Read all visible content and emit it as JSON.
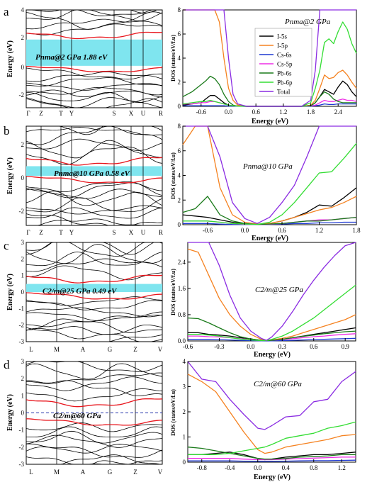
{
  "panels": [
    {
      "letter": "a",
      "band": {
        "kpoints": [
          "Γ",
          "Z",
          "T",
          "Y",
          "S",
          "X",
          "U",
          "R"
        ],
        "ylabel": "Energy (eV)",
        "ylim": [
          -3,
          4
        ],
        "yticks": [
          -2,
          0,
          2,
          4
        ],
        "label": "Pnma@2 GPa  1.88 eV",
        "gap": [
          0,
          1.88
        ]
      },
      "dos": {
        "title": "Pnma@2 GPa",
        "ylabel": "DOS (states/eV/f.u)",
        "xlabel": "Energy (eV)",
        "xlim": [
          -1,
          2.8
        ],
        "ylim": [
          0,
          8
        ],
        "xticks": [
          "-0.6",
          "0.0",
          "0.6",
          "1.2",
          "1.8",
          "2.4"
        ],
        "yticks": [
          "0",
          "2",
          "4",
          "6",
          "8"
        ],
        "legend": [
          "I-5s",
          "I-5p",
          "Cs-6s",
          "Cs-5p",
          "Pb-6s",
          "Pb-6p",
          "Total"
        ]
      }
    },
    {
      "letter": "b",
      "band": {
        "kpoints": [
          "Γ",
          "Z",
          "T",
          "Y",
          "S",
          "X",
          "U",
          "R"
        ],
        "ylabel": "Energy (eV)",
        "ylim": [
          -3,
          3
        ],
        "yticks": [
          -2,
          0,
          2
        ],
        "label": "Pnma@10 GPa   0.58 eV",
        "gap": [
          0,
          0.58
        ]
      },
      "dos": {
        "title": "Pnma@10 GPa",
        "ylabel": "DOS (states/eV/f.u)",
        "xlabel": "Energy (eV)",
        "xlim": [
          -1,
          1.8
        ],
        "ylim": [
          0,
          8
        ],
        "xticks": [
          "-0.6",
          "0.0",
          "0.6",
          "1.2",
          "1.8"
        ],
        "yticks": [
          "0",
          "2",
          "4",
          "6",
          "8"
        ]
      }
    },
    {
      "letter": "c",
      "band": {
        "kpoints": [
          "L",
          "M",
          "A",
          "G",
          "Z",
          "V"
        ],
        "ylabel": "Energy (eV)",
        "ylim": [
          -3,
          3
        ],
        "yticks": [
          -3,
          -2,
          -1,
          0,
          1,
          2,
          3
        ],
        "label": "C2/m@25 GPa  0.49 eV",
        "gap": [
          0,
          0.49
        ]
      },
      "dos": {
        "title": "C2/m@25 GPa",
        "ylabel": "DOS (states/eV/f.u)",
        "xlabel": "Energy (eV)",
        "xlim": [
          -0.6,
          1.0
        ],
        "ylim": [
          0,
          3.0
        ],
        "xticks": [
          "-0.6",
          "-0.3",
          "0.0",
          "0.3",
          "0.6",
          "0.9"
        ],
        "yticks": [
          "0.0",
          "0.8",
          "1.6",
          "2.4"
        ]
      }
    },
    {
      "letter": "d",
      "band": {
        "kpoints": [
          "L",
          "M",
          "A",
          "G",
          "Z",
          "V"
        ],
        "ylabel": "Energy (eV)",
        "ylim": [
          -3,
          3
        ],
        "yticks": [
          -3,
          -2,
          -1,
          0,
          1,
          2,
          3
        ],
        "label": "C2/m@60 GPa"
      },
      "dos": {
        "title": "C2/m@60 GPa",
        "ylabel": "DOS (states/eV/f.u)",
        "xlabel": "Energy (eV)",
        "xlim": [
          -1,
          1.4
        ],
        "ylim": [
          0,
          4
        ],
        "xticks": [
          "-0.8",
          "-0.4",
          "0.0",
          "0.4",
          "0.8",
          "1.2"
        ],
        "yticks": [
          "0",
          "1",
          "2",
          "3",
          "4"
        ]
      }
    }
  ],
  "colors": {
    "band_black": "#000000",
    "band_red": "#e8141b",
    "gap_fill": "#7fe5ef",
    "I-5s": "#000000",
    "I-5p": "#f58220",
    "Cs-6s": "#1f3ad1",
    "Cs-5p": "#ee2ee6",
    "Pb-6s": "#1a7a1a",
    "Pb-6p": "#33dd33",
    "Total": "#8a2be2"
  },
  "chart_data": [
    {
      "type": "line",
      "title": "Pnma@2 GPa",
      "xlabel": "Energy (eV)",
      "ylabel": "DOS (states/eV/f.u)",
      "xlim": [
        -1,
        2.8
      ],
      "ylim": [
        0,
        8
      ],
      "x": [
        -1.0,
        -0.8,
        -0.6,
        -0.5,
        -0.4,
        -0.3,
        -0.2,
        -0.1,
        0.0,
        0.1,
        0.2,
        0.4,
        0.8,
        1.2,
        1.6,
        1.8,
        1.9,
        2.0,
        2.1,
        2.2,
        2.3,
        2.4,
        2.5,
        2.6,
        2.7,
        2.8
      ],
      "series": [
        {
          "name": "I-5s",
          "values": [
            0.1,
            0.2,
            0.3,
            0.6,
            0.9,
            0.9,
            0.6,
            0.3,
            0.1,
            0.05,
            0.02,
            0,
            0,
            0,
            0,
            0.05,
            0.3,
            0.8,
            1.4,
            1.2,
            1.0,
            1.6,
            2.1,
            1.8,
            1.2,
            0.8
          ]
        },
        {
          "name": "I-5p",
          "values": [
            8,
            8,
            8,
            8,
            8,
            8,
            7,
            4,
            1.5,
            0.5,
            0.1,
            0,
            0,
            0,
            0,
            0.1,
            0.5,
            1.5,
            2.6,
            2.3,
            2.4,
            2.8,
            3.0,
            2.6,
            2.0,
            1.5
          ]
        },
        {
          "name": "Cs-6s",
          "values": [
            0.05,
            0.05,
            0.05,
            0.05,
            0.05,
            0.05,
            0.05,
            0.05,
            0.02,
            0.02,
            0.01,
            0,
            0,
            0,
            0,
            0.02,
            0.05,
            0.1,
            0.2,
            0.15,
            0.15,
            0.2,
            0.2,
            0.2,
            0.2,
            0.2
          ]
        },
        {
          "name": "Cs-5p",
          "values": [
            0.2,
            0.2,
            0.3,
            0.3,
            0.4,
            0.4,
            0.3,
            0.2,
            0.1,
            0.05,
            0.02,
            0,
            0,
            0,
            0,
            0.05,
            0.1,
            0.3,
            0.5,
            0.4,
            0.4,
            0.5,
            0.6,
            0.5,
            0.5,
            0.4
          ]
        },
        {
          "name": "Pb-6s",
          "values": [
            0.8,
            1.2,
            1.8,
            2.1,
            2.5,
            2.3,
            1.8,
            1.0,
            0.4,
            0.1,
            0.02,
            0,
            0,
            0,
            0,
            0.05,
            0.3,
            0.8,
            1.2,
            1.0,
            0.6,
            0.4,
            0.3,
            0.3,
            0.3,
            0.3
          ]
        },
        {
          "name": "Pb-6p",
          "values": [
            0.2,
            0.3,
            0.4,
            0.4,
            0.5,
            0.4,
            0.3,
            0.2,
            0.1,
            0.05,
            0.02,
            0,
            0,
            0,
            0,
            0.3,
            1.5,
            3.0,
            5.3,
            5.6,
            5.2,
            6.2,
            7.0,
            6.4,
            5.2,
            4.4
          ]
        },
        {
          "name": "Total",
          "values": [
            8,
            8,
            8,
            8,
            8,
            8,
            8,
            8,
            4,
            1.0,
            0.2,
            0,
            0,
            0,
            0,
            0.5,
            3.0,
            8,
            8,
            8,
            8,
            8,
            8,
            8,
            8,
            8
          ]
        }
      ]
    },
    {
      "type": "line",
      "title": "Pnma@10 GPa",
      "xlabel": "Energy (eV)",
      "ylabel": "DOS (states/eV/f.u)",
      "xlim": [
        -1,
        1.8
      ],
      "ylim": [
        0,
        8
      ],
      "x": [
        -1.0,
        -0.8,
        -0.6,
        -0.4,
        -0.2,
        0.0,
        0.2,
        0.4,
        0.6,
        0.8,
        1.0,
        1.2,
        1.4,
        1.6,
        1.8
      ],
      "series": [
        {
          "name": "I-5s",
          "values": [
            0.8,
            0.7,
            0.6,
            0.4,
            0.2,
            0.05,
            0.02,
            0.1,
            0.3,
            0.6,
            1.0,
            1.6,
            1.5,
            2.2,
            3.0
          ]
        },
        {
          "name": "I-5p",
          "values": [
            6.5,
            8,
            8,
            3.0,
            0.8,
            0.2,
            0.05,
            0.1,
            0.3,
            0.6,
            0.9,
            1.2,
            1.4,
            1.8,
            2.3
          ]
        },
        {
          "name": "Cs-6s",
          "values": [
            0.1,
            0.1,
            0.1,
            0.05,
            0.02,
            0.01,
            0.01,
            0.02,
            0.05,
            0.1,
            0.1,
            0.15,
            0.15,
            0.2,
            0.2
          ]
        },
        {
          "name": "Cs-5p",
          "values": [
            0.3,
            0.3,
            0.3,
            0.2,
            0.1,
            0.03,
            0.01,
            0.03,
            0.1,
            0.2,
            0.3,
            0.4,
            0.4,
            0.5,
            0.6
          ]
        },
        {
          "name": "Pb-6s",
          "values": [
            1.0,
            1.3,
            2.3,
            0.8,
            0.3,
            0.1,
            0.02,
            0.05,
            0.1,
            0.2,
            0.3,
            0.3,
            0.4,
            0.5,
            0.6
          ]
        },
        {
          "name": "Pb-6p",
          "values": [
            0.3,
            0.3,
            0.3,
            0.2,
            0.1,
            0.05,
            0.02,
            0.2,
            0.8,
            1.8,
            3.0,
            4.2,
            4.3,
            5.4,
            6.6
          ]
        },
        {
          "name": "Total",
          "values": [
            8,
            8,
            8,
            5.5,
            1.8,
            0.5,
            0.1,
            0.6,
            1.8,
            3.2,
            5.5,
            8,
            8,
            8,
            8
          ]
        }
      ]
    },
    {
      "type": "line",
      "title": "C2/m@25 GPa",
      "xlabel": "Energy (eV)",
      "ylabel": "DOS (states/eV/f.u)",
      "xlim": [
        -0.6,
        1.0
      ],
      "ylim": [
        0,
        3.0
      ],
      "x": [
        -0.6,
        -0.5,
        -0.4,
        -0.3,
        -0.2,
        -0.1,
        0.0,
        0.1,
        0.15,
        0.2,
        0.3,
        0.4,
        0.5,
        0.6,
        0.7,
        0.8,
        0.9,
        1.0
      ],
      "series": [
        {
          "name": "I-5s",
          "values": [
            0.25,
            0.25,
            0.2,
            0.18,
            0.15,
            0.1,
            0.06,
            0.02,
            0.01,
            0.02,
            0.05,
            0.1,
            0.15,
            0.2,
            0.25,
            0.3,
            0.35,
            0.4
          ]
        },
        {
          "name": "I-5p",
          "values": [
            2.8,
            2.7,
            2.0,
            1.3,
            0.8,
            0.45,
            0.2,
            0.05,
            0.01,
            0.03,
            0.08,
            0.15,
            0.25,
            0.35,
            0.45,
            0.55,
            0.65,
            0.8
          ]
        },
        {
          "name": "Cs-6s",
          "values": [
            0.05,
            0.05,
            0.05,
            0.04,
            0.03,
            0.02,
            0.01,
            0.005,
            0.0,
            0.005,
            0.01,
            0.02,
            0.03,
            0.04,
            0.05,
            0.06,
            0.07,
            0.08
          ]
        },
        {
          "name": "Cs-5p",
          "values": [
            0.15,
            0.15,
            0.13,
            0.12,
            0.1,
            0.07,
            0.04,
            0.02,
            0.01,
            0.02,
            0.04,
            0.07,
            0.1,
            0.13,
            0.15,
            0.18,
            0.2,
            0.22
          ]
        },
        {
          "name": "Pb-6s",
          "values": [
            0.7,
            0.68,
            0.55,
            0.4,
            0.25,
            0.13,
            0.06,
            0.02,
            0.01,
            0.02,
            0.05,
            0.1,
            0.14,
            0.18,
            0.22,
            0.25,
            0.28,
            0.3
          ]
        },
        {
          "name": "Pb-6p",
          "values": [
            0.2,
            0.2,
            0.18,
            0.15,
            0.1,
            0.06,
            0.03,
            0.01,
            0.01,
            0.05,
            0.15,
            0.3,
            0.5,
            0.7,
            0.95,
            1.2,
            1.45,
            1.7
          ]
        },
        {
          "name": "Total",
          "values": [
            3.0,
            3.0,
            3.0,
            2.3,
            1.4,
            0.7,
            0.3,
            0.08,
            0.02,
            0.12,
            0.45,
            0.9,
            1.4,
            1.85,
            2.25,
            2.6,
            2.9,
            3.0
          ]
        }
      ]
    },
    {
      "type": "line",
      "title": "C2/m@60 GPa",
      "xlabel": "Energy (eV)",
      "ylabel": "DOS (states/eV/f.u)",
      "xlim": [
        -1,
        1.4
      ],
      "ylim": [
        0,
        4
      ],
      "x": [
        -1.0,
        -0.8,
        -0.6,
        -0.4,
        -0.2,
        0.0,
        0.1,
        0.2,
        0.4,
        0.6,
        0.8,
        1.0,
        1.2,
        1.4
      ],
      "series": [
        {
          "name": "I-5s",
          "values": [
            0.3,
            0.3,
            0.35,
            0.4,
            0.3,
            0.15,
            0.1,
            0.12,
            0.2,
            0.25,
            0.3,
            0.3,
            0.35,
            0.4
          ]
        },
        {
          "name": "I-5p",
          "values": [
            3.5,
            3.2,
            2.8,
            2.0,
            1.2,
            0.5,
            0.35,
            0.4,
            0.6,
            0.7,
            0.8,
            0.9,
            1.05,
            1.1
          ]
        },
        {
          "name": "Cs-6s",
          "values": [
            0.05,
            0.05,
            0.05,
            0.05,
            0.04,
            0.03,
            0.03,
            0.03,
            0.04,
            0.05,
            0.06,
            0.06,
            0.07,
            0.08
          ]
        },
        {
          "name": "Cs-5p",
          "values": [
            0.15,
            0.15,
            0.15,
            0.15,
            0.12,
            0.1,
            0.1,
            0.1,
            0.12,
            0.14,
            0.16,
            0.18,
            0.2,
            0.2
          ]
        },
        {
          "name": "Pb-6s",
          "values": [
            0.6,
            0.55,
            0.45,
            0.35,
            0.25,
            0.15,
            0.12,
            0.12,
            0.15,
            0.2,
            0.22,
            0.25,
            0.3,
            0.3
          ]
        },
        {
          "name": "Pb-6p",
          "values": [
            0.3,
            0.3,
            0.3,
            0.35,
            0.45,
            0.55,
            0.6,
            0.7,
            0.95,
            1.05,
            1.15,
            1.35,
            1.45,
            1.6
          ]
        },
        {
          "name": "Total",
          "values": [
            4.0,
            3.3,
            3.2,
            2.5,
            1.9,
            1.35,
            1.3,
            1.45,
            1.8,
            1.85,
            2.4,
            2.5,
            3.2,
            3.6
          ]
        }
      ]
    }
  ]
}
